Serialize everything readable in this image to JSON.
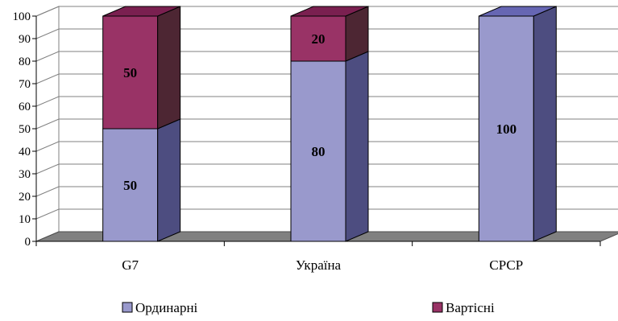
{
  "chart_data": {
    "type": "bar",
    "stacked": true,
    "three_d": true,
    "categories": [
      "G7",
      "Україна",
      "СРСР"
    ],
    "series": [
      {
        "name": "Ординарні",
        "values": [
          50,
          80,
          100
        ],
        "color": "#9999cc",
        "side_color": "#4d4d80",
        "top_color": "#6666b3"
      },
      {
        "name": "Вартісні",
        "values": [
          50,
          20,
          0
        ],
        "color": "#993366",
        "side_color": "#4d2633",
        "top_color": "#7a2050"
      }
    ],
    "data_labels": [
      [
        "50",
        "80",
        "100"
      ],
      [
        "50",
        "20",
        ""
      ]
    ],
    "yticks": [
      "0",
      "10",
      "20",
      "30",
      "40",
      "50",
      "60",
      "70",
      "80",
      "90",
      "100"
    ],
    "ylim": [
      0,
      100
    ],
    "grid": true,
    "legend_position": "bottom",
    "title": "",
    "xlabel": "",
    "ylabel": ""
  }
}
